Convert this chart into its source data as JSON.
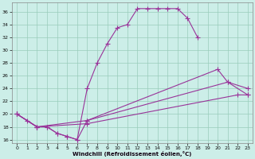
{
  "background_color": "#cceee8",
  "grid_color": "#99ccbb",
  "line_color": "#993399",
  "xlabel": "Windchill (Refroidissement éolien,°C)",
  "xlim": [
    -0.5,
    23.5
  ],
  "ylim": [
    15.5,
    37.5
  ],
  "xticks": [
    0,
    1,
    2,
    3,
    4,
    5,
    6,
    7,
    8,
    9,
    10,
    11,
    12,
    13,
    14,
    15,
    16,
    17,
    18,
    19,
    20,
    21,
    22,
    23
  ],
  "yticks": [
    16,
    18,
    20,
    22,
    24,
    26,
    28,
    30,
    32,
    34,
    36
  ],
  "curve1_x": [
    0,
    1,
    2,
    3,
    4,
    5,
    6,
    7,
    8,
    9,
    10,
    11,
    12,
    13,
    14,
    15,
    16,
    17,
    18
  ],
  "curve1_y": [
    20,
    19,
    18,
    18,
    17,
    16.5,
    16,
    24,
    28,
    31,
    33.5,
    34,
    36.5,
    36.5,
    36.5,
    36.5,
    36.5,
    35,
    32
  ],
  "curve2_x": [
    0,
    2,
    3,
    4,
    5,
    6,
    7,
    20,
    21,
    23
  ],
  "curve2_y": [
    20,
    18,
    18,
    17,
    16.5,
    16,
    19,
    27,
    25,
    23
  ],
  "curve3_x": [
    0,
    2,
    7,
    21,
    23
  ],
  "curve3_y": [
    20,
    18,
    19,
    25,
    24
  ],
  "curve4_x": [
    0,
    2,
    7,
    22,
    23
  ],
  "curve4_y": [
    20,
    18,
    18.5,
    23,
    23
  ]
}
